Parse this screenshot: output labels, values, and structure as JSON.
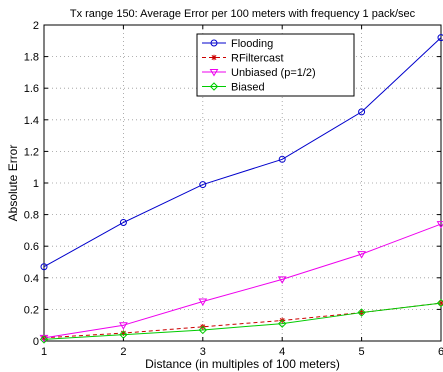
{
  "chart_data": {
    "type": "line",
    "title": "Tx range 150: Average Error per 100 meters with frequency 1 pack/sec",
    "xlabel": "Distance (in multiples of 100 meters)",
    "ylabel": "Absolute Error",
    "x": [
      1,
      2,
      3,
      4,
      5,
      6
    ],
    "xlim": [
      1,
      6
    ],
    "ylim": [
      0,
      2
    ],
    "xticks": [
      "1",
      "2",
      "3",
      "4",
      "5",
      "6"
    ],
    "yticks": [
      "0",
      "0.2",
      "0.4",
      "0.6",
      "0.8",
      "1",
      "1.2",
      "1.4",
      "1.6",
      "1.8",
      "2"
    ],
    "grid": true,
    "legend_position": "top-center",
    "series": [
      {
        "name": "Flooding",
        "values": [
          0.47,
          0.75,
          0.99,
          1.15,
          1.45,
          1.92
        ],
        "color": "#0000cc",
        "marker": "circle",
        "dash": "solid"
      },
      {
        "name": "RFiltercast",
        "values": [
          0.02,
          0.05,
          0.09,
          0.13,
          0.18,
          0.24
        ],
        "color": "#cc0000",
        "marker": "star",
        "dash": "dashed"
      },
      {
        "name": "Unbiased (p=1/2)",
        "values": [
          0.02,
          0.1,
          0.25,
          0.39,
          0.55,
          0.74
        ],
        "color": "#ee00ee",
        "marker": "triangle-down",
        "dash": "solid"
      },
      {
        "name": "Biased",
        "values": [
          0.01,
          0.04,
          0.07,
          0.11,
          0.18,
          0.24
        ],
        "color": "#00cc00",
        "marker": "diamond",
        "dash": "solid"
      }
    ]
  }
}
